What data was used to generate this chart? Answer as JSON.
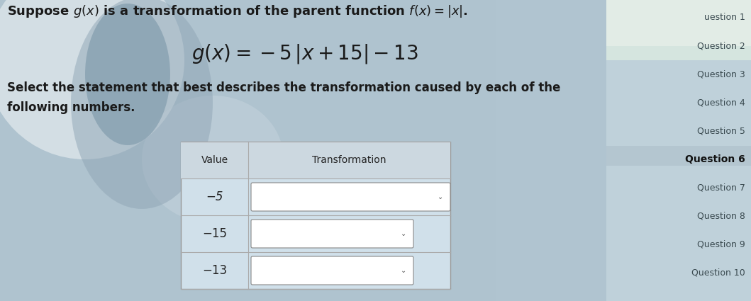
{
  "title_text": "Suppose $g(x)$ is a transformation of the parent function $f(x) = |x|$.",
  "formula": "$g(x) = -5\\,|x + 15| - 13$",
  "subtitle_line1": "Select the statement that best describes the transformation caused by each of the",
  "subtitle_line2": "following numbers.",
  "table_headers": [
    "Value",
    "Transformation"
  ],
  "table_rows": [
    "−5",
    "−15",
    "−13"
  ],
  "bg_color_main": "#b8ccd8",
  "sidebar_items": [
    "uestion 1",
    "Question 2",
    "Question 3",
    "Question 4",
    "Question 5",
    "Question 6",
    "Question 7",
    "Question 8",
    "Question 9",
    "Question 10"
  ],
  "sidebar_bold_idx": 5,
  "table_bg": "#dce8ef",
  "dropdown_bg": "#ffffff",
  "text_color_dark": "#1a1a1a",
  "sidebar_text_color": "#444444",
  "sidebar_bg": "#c5d5de",
  "sidebar_bold_bg": "#b8c8d2"
}
